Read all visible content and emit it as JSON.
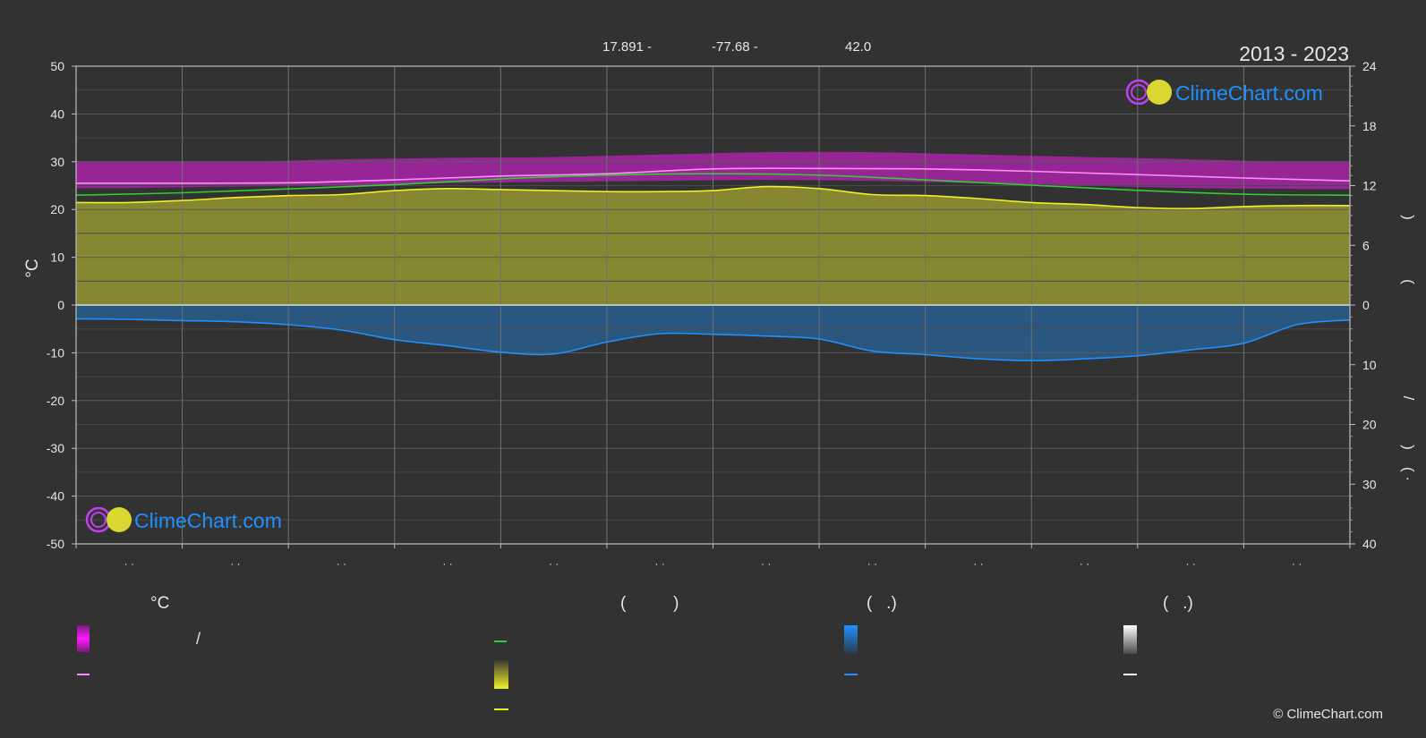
{
  "header": {
    "lat": "17.891 -",
    "lon": "-77.68 -",
    "elevation": "42.0",
    "period": "2013 - 2023"
  },
  "watermark": {
    "text": "ClimeChart.com"
  },
  "copyright": "© ClimeChart.com",
  "legend": {
    "temp_title": "°C",
    "col2_title": "(          )",
    "col3_title": "(   .)",
    "col4_title": "(   .)",
    "slash": "/"
  },
  "colors": {
    "background": "#323232",
    "grid": "#5a5a5a",
    "temp_band": "#d41ed4",
    "max_line": "#ff8cff",
    "mean_line": "#33cc33",
    "sun_band": "#a8a832",
    "sun_line": "#f0f028",
    "rain_band": "#2476c0",
    "rain_line": "#1e90ff",
    "snow_line": "#ffffff",
    "brand_blue": "#1e90ff"
  },
  "chart_data": {
    "type": "area",
    "x": [
      0.5,
      1.5,
      2.5,
      3.5,
      4.5,
      5.5,
      6.5,
      7.5,
      8.5,
      9.5,
      10.5,
      11.5
    ],
    "x_tick_labels": [
      "· ·",
      "· ·",
      "· ·",
      "· ·",
      "· ·",
      "· ·",
      "· ·",
      "· ·",
      "· ·",
      "· ·",
      "· ·",
      "· ·"
    ],
    "xlim": [
      0,
      12
    ],
    "ylabel": "°C",
    "ylim": [
      -50,
      50
    ],
    "y_ticks": [
      50,
      40,
      30,
      20,
      10,
      0,
      -10,
      -20,
      -30,
      -40,
      -50
    ],
    "y2_upper_ticks": [
      24,
      18,
      12,
      6,
      0
    ],
    "y2_upper_range": [
      0,
      24
    ],
    "y2_lower_ticks": [
      0,
      10,
      20,
      30,
      40
    ],
    "y2_lower_range": [
      0,
      40
    ],
    "y2_label_marks": [
      ")",
      "(",
      "/",
      ")",
      "(  ·"
    ],
    "grid": true,
    "series": [
      {
        "type": "band",
        "values_low": [
          24.5,
          24.8,
          25.0,
          25.5,
          25.8,
          26.0,
          26.2,
          26.0,
          25.5,
          25.0,
          24.5,
          24.3
        ],
        "values_high": [
          30.0,
          30.0,
          30.5,
          30.8,
          31.0,
          31.5,
          32.0,
          32.0,
          31.5,
          31.0,
          30.5,
          30.0
        ]
      },
      {
        "type": "line",
        "values": [
          25.5,
          25.5,
          25.8,
          26.5,
          27.0,
          28.0,
          28.5,
          28.5,
          28.0,
          27.3,
          26.5,
          26.0
        ]
      },
      {
        "type": "line",
        "values": [
          23.0,
          23.8,
          24.8,
          26.0,
          27.0,
          27.5,
          27.3,
          26.5,
          25.5,
          24.5,
          23.5,
          23.0
        ]
      },
      {
        "type": "line",
        "values": [
          21.3,
          22.0,
          23.0,
          24.2,
          24.0,
          23.8,
          24.6,
          23.0,
          22.0,
          21.0,
          20.2,
          20.8
        ]
      },
      {
        "type": "line",
        "values": [
          -2.9,
          -3.2,
          -5.8,
          -8.8,
          -8.1,
          -5.4,
          -5.8,
          -8.3,
          -9.6,
          -9.0,
          -7.2,
          -2.9
        ]
      }
    ],
    "knots": {
      "max_temp_c": {
        "x": [
          0,
          1,
          2,
          3,
          4,
          5,
          6,
          7,
          8,
          9,
          10,
          11,
          12
        ],
        "y": [
          25.5,
          25.5,
          25.6,
          26.2,
          27.0,
          27.5,
          28.5,
          28.6,
          28.5,
          28.0,
          27.3,
          26.6,
          26.0
        ]
      },
      "mean_temp_c": {
        "x": [
          0,
          1,
          2,
          3,
          4,
          5,
          6,
          7,
          8,
          9,
          10,
          11,
          12
        ],
        "y": [
          23.0,
          23.5,
          24.3,
          25.2,
          26.4,
          27.2,
          27.5,
          27.2,
          26.2,
          25.1,
          24.0,
          23.2,
          23.0
        ]
      },
      "sunshine_h": {
        "x": [
          0,
          0.5,
          1,
          1.5,
          2,
          2.5,
          3,
          3.5,
          4,
          4.5,
          5,
          5.5,
          6,
          6.5,
          7,
          7.5,
          8,
          8.5,
          9,
          9.5,
          10,
          10.5,
          11,
          11.5,
          12
        ],
        "y": [
          10.3,
          10.3,
          10.5,
          10.8,
          11.0,
          11.1,
          11.5,
          11.7,
          11.6,
          11.5,
          11.4,
          11.4,
          11.5,
          11.9,
          11.7,
          11.1,
          11.0,
          10.7,
          10.3,
          10.1,
          9.8,
          9.7,
          9.9,
          10.0,
          10.0
        ]
      },
      "precip_mm": {
        "x": [
          0,
          0.5,
          1,
          1.5,
          2,
          2.5,
          3,
          3.5,
          4,
          4.5,
          5,
          5.5,
          6,
          6.5,
          7,
          7.5,
          8,
          8.5,
          9,
          9.5,
          10,
          10.5,
          11,
          11.5,
          12
        ],
        "y": [
          2.3,
          2.4,
          2.6,
          2.8,
          3.3,
          4.2,
          5.8,
          6.8,
          7.9,
          8.2,
          6.2,
          4.8,
          4.9,
          5.2,
          5.7,
          7.7,
          8.3,
          9.0,
          9.3,
          9.0,
          8.5,
          7.5,
          6.4,
          3.3,
          2.5
        ]
      }
    }
  }
}
